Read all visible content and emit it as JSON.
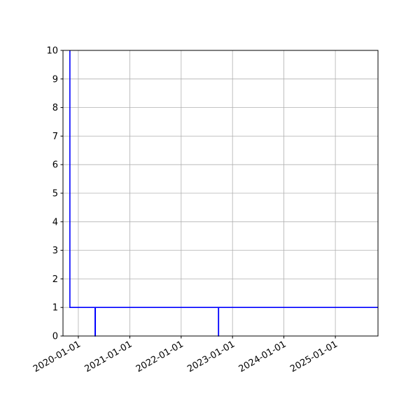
{
  "chart_data": {
    "type": "line",
    "drawstyle": "steps",
    "title": "",
    "xlabel": "",
    "ylabel": "",
    "xlim": [
      "2019-09-14",
      "2025-10-31"
    ],
    "ylim": [
      0,
      10
    ],
    "grid": true,
    "line_color": "#0000ff",
    "x_ticks": [
      "2020-01-01",
      "2021-01-01",
      "2022-01-01",
      "2023-01-01",
      "2024-01-01",
      "2025-01-01"
    ],
    "y_ticks": [
      "0",
      "1",
      "2",
      "3",
      "4",
      "5",
      "6",
      "7",
      "8",
      "9",
      "10"
    ],
    "series": [
      {
        "points": [
          {
            "x": "2019-11-02",
            "y": 10
          },
          {
            "x": "2019-11-02",
            "y": 1
          },
          {
            "x": "2020-04-29",
            "y": 1
          },
          {
            "x": "2020-04-29",
            "y": 0
          },
          {
            "x": "2020-05-01",
            "y": 0
          },
          {
            "x": "2020-05-01",
            "y": 1
          },
          {
            "x": "2022-09-23",
            "y": 1
          },
          {
            "x": "2022-09-23",
            "y": 0
          },
          {
            "x": "2022-09-24",
            "y": 0
          },
          {
            "x": "2022-09-24",
            "y": 1
          },
          {
            "x": "2025-10-31",
            "y": 1
          }
        ]
      }
    ]
  }
}
